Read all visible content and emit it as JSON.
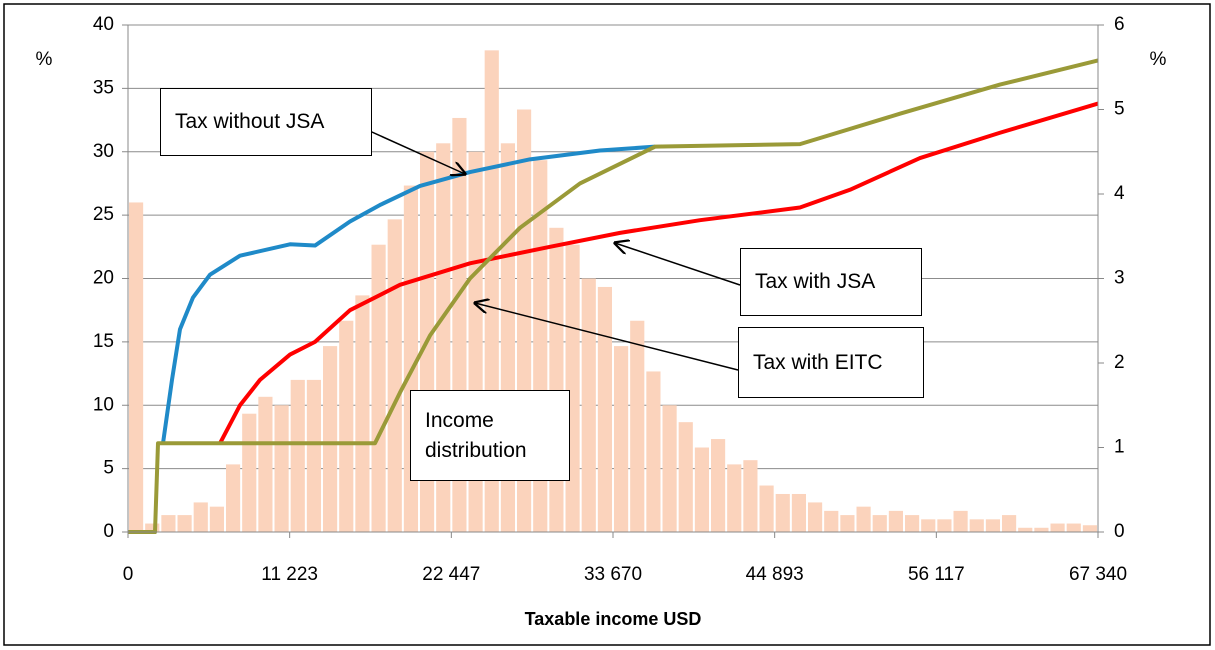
{
  "chart_data": {
    "type": "combo",
    "xlabel": "Taxable income USD",
    "ylabel": "%",
    "y2label": "%",
    "xlim": [
      0,
      67340
    ],
    "xticks": [
      0,
      {
        "value": 11223,
        "label": "11 223"
      },
      {
        "value": 22447,
        "label": "22 447"
      },
      {
        "value": 33670,
        "label": "33 670"
      },
      {
        "value": 44893,
        "label": "44 893"
      },
      {
        "value": 56117,
        "label": "56 117"
      },
      {
        "value": 67340,
        "label": "67 340"
      }
    ],
    "ylim": [
      0,
      40
    ],
    "yticks": [
      0,
      5,
      10,
      15,
      20,
      25,
      30,
      35,
      40
    ],
    "y2lim": [
      0,
      6
    ],
    "y2ticks": [
      0,
      1,
      2,
      3,
      4,
      5,
      6
    ],
    "grid": true,
    "series": [
      {
        "name": "Income distribution",
        "type": "histogram",
        "axis": "y2",
        "color": "#fbd3bc",
        "bins": [
          0,
          1122,
          2245,
          3367,
          4489,
          5612,
          6734,
          7856,
          8979,
          10101,
          11223,
          12346,
          13468,
          14590,
          15713,
          16835,
          17957,
          19080,
          20202,
          21324,
          22447,
          23569,
          24691,
          25814,
          26936,
          28058,
          29181,
          30303,
          31425,
          32548,
          33670,
          34792,
          35915,
          37037,
          38159,
          39282,
          40404,
          41526,
          42649,
          43771,
          44893,
          46016,
          47138,
          48260,
          49383,
          50505,
          51627,
          52750,
          53872,
          54994,
          56117,
          57239,
          58361,
          59484,
          60606,
          61728,
          62851,
          63973,
          65095,
          66218,
          67340
        ],
        "values": [
          3.9,
          0.1,
          0.2,
          0.2,
          0.35,
          0.3,
          0.8,
          1.4,
          1.6,
          1.5,
          1.8,
          1.8,
          2.2,
          2.5,
          2.8,
          3.4,
          3.7,
          4.1,
          4.5,
          4.6,
          4.9,
          4.5,
          5.7,
          4.6,
          5.0,
          4.4,
          3.6,
          3.4,
          3.0,
          2.9,
          2.2,
          2.5,
          1.9,
          1.5,
          1.3,
          1.0,
          1.1,
          0.8,
          0.85,
          0.55,
          0.45,
          0.45,
          0.35,
          0.25,
          0.2,
          0.3,
          0.2,
          0.25,
          0.2,
          0.15,
          0.15,
          0.25,
          0.15,
          0.15,
          0.2,
          0.05,
          0.05,
          0.1,
          0.1,
          0.08
        ]
      },
      {
        "name": "Tax without JSA",
        "type": "line",
        "color": "#1f8ac8",
        "x": [
          2430,
          3054,
          3610,
          4512,
          5692,
          7775,
          11246,
          12982,
          15411,
          17494,
          20271,
          23742,
          27907,
          32766,
          36584
        ],
        "values": [
          7,
          12,
          16,
          18.5,
          20.3,
          21.8,
          22.7,
          22.6,
          24.5,
          25.8,
          27.3,
          28.4,
          29.4,
          30.1,
          30.4
        ]
      },
      {
        "name": "Tax with JSA",
        "type": "line",
        "color": "#ff0000",
        "x": [
          6387,
          7775,
          9163,
          11246,
          12982,
          15411,
          18882,
          23742,
          29295,
          34155,
          39708,
          46650,
          50121,
          54980,
          60534,
          67340
        ],
        "values": [
          7,
          10,
          12,
          14,
          15,
          17.5,
          19.5,
          21.2,
          22.5,
          23.6,
          24.6,
          25.6,
          27,
          29.5,
          31.5,
          33.8
        ]
      },
      {
        "name": "Tax with EITC",
        "type": "line",
        "color": "#9a9a38",
        "x": [
          0,
          1874,
          2083,
          17147,
          18882,
          20965,
          23742,
          27213,
          31378,
          36584,
          46650,
          53592,
          60534,
          67340
        ],
        "values": [
          0,
          0,
          7,
          7,
          11,
          15.5,
          20,
          24,
          27.5,
          30.4,
          30.6,
          33,
          35.3,
          37.2
        ]
      }
    ]
  }
}
